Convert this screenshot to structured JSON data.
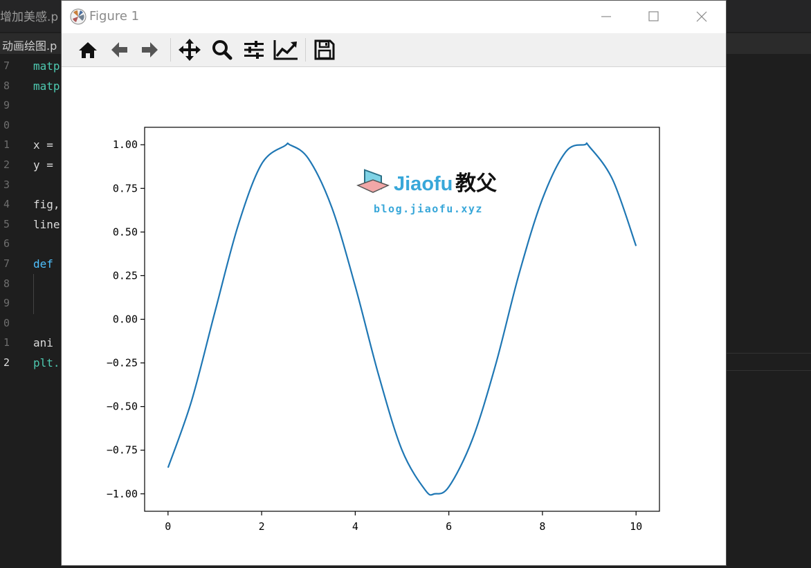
{
  "editor": {
    "tab_title": "增加美感.p",
    "breadcrumb": "动画绘图.p",
    "line_numbers": [
      "7",
      "8",
      "9",
      "0",
      "1",
      "2",
      "3",
      "4",
      "5",
      "6",
      "7",
      "8",
      "9",
      "0",
      "1",
      "2"
    ],
    "lines": [
      {
        "text": "matp",
        "kind": "fn"
      },
      {
        "text": "matp",
        "kind": "fn"
      },
      {
        "text": "",
        "kind": "tx"
      },
      {
        "text": "",
        "kind": "tx"
      },
      {
        "text": "x =",
        "kind": "tx"
      },
      {
        "text": "y =",
        "kind": "tx"
      },
      {
        "text": "",
        "kind": "tx"
      },
      {
        "text": "fig,",
        "kind": "tx"
      },
      {
        "text": "line",
        "kind": "tx"
      },
      {
        "text": "",
        "kind": "tx"
      },
      {
        "text": "def",
        "kind": "kw"
      },
      {
        "text": "",
        "kind": "tx"
      },
      {
        "text": "",
        "kind": "tx"
      },
      {
        "text": "",
        "kind": "tx"
      },
      {
        "text": "ani",
        "kind": "tx"
      },
      {
        "text": "plt.",
        "kind": "fn"
      }
    ]
  },
  "window": {
    "title": "Figure 1",
    "controls": {
      "minimize": "minimize",
      "maximize": "maximize",
      "close": "close"
    }
  },
  "toolbar": {
    "buttons": [
      {
        "name": "home",
        "icon": "home-icon"
      },
      {
        "name": "back",
        "icon": "arrow-left-icon"
      },
      {
        "name": "forward",
        "icon": "arrow-right-icon"
      },
      {
        "name": "pan",
        "icon": "move-icon"
      },
      {
        "name": "zoom",
        "icon": "magnifier-icon"
      },
      {
        "name": "subplots",
        "icon": "sliders-icon"
      },
      {
        "name": "edit-axes",
        "icon": "line-chart-icon"
      },
      {
        "name": "save",
        "icon": "floppy-disk-icon"
      }
    ]
  },
  "watermark": {
    "brand_latin": "Jiaofu",
    "brand_cjk": "教父",
    "url": "blog.jiaofu.xyz"
  },
  "chart_data": {
    "type": "line",
    "title": "",
    "xlabel": "",
    "ylabel": "",
    "xlim": [
      -0.5,
      10.5
    ],
    "ylim": [
      -1.1,
      1.1
    ],
    "xticks": [
      0,
      2,
      4,
      6,
      8,
      10
    ],
    "xtick_labels": [
      "0",
      "2",
      "4",
      "6",
      "8",
      "10"
    ],
    "yticks": [
      1.0,
      0.75,
      0.5,
      0.25,
      0.0,
      -0.25,
      -0.5,
      -0.75,
      -1.0
    ],
    "ytick_labels": [
      "1.00",
      "0.75",
      "0.50",
      "0.25",
      "0.00",
      "−0.25",
      "−0.50",
      "−0.75",
      "−1.00"
    ],
    "grid": false,
    "series": [
      {
        "color": "#1f77b4",
        "x": [
          0.0,
          0.5,
          1.0,
          1.5,
          2.0,
          2.5,
          2.6,
          3.0,
          3.5,
          4.0,
          4.5,
          5.0,
          5.5,
          5.7,
          6.0,
          6.5,
          7.0,
          7.5,
          8.0,
          8.5,
          8.9,
          9.0,
          9.5,
          10.0
        ],
        "y": [
          -0.85,
          -0.47,
          0.04,
          0.54,
          0.89,
          0.995,
          1.0,
          0.92,
          0.64,
          0.19,
          -0.32,
          -0.75,
          -0.98,
          -1.0,
          -0.96,
          -0.69,
          -0.26,
          0.26,
          0.69,
          0.96,
          1.0,
          0.99,
          0.8,
          0.42
        ]
      }
    ]
  }
}
